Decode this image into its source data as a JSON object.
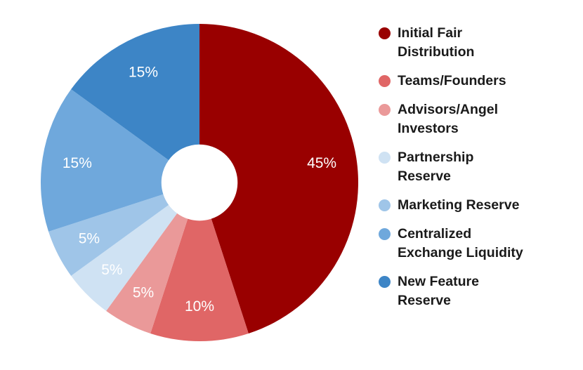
{
  "figure": {
    "background_color": "#ffffff"
  },
  "chart_data": {
    "type": "pie",
    "subtype": "donut",
    "title": "",
    "start_angle_deg": 0,
    "direction": "clockwise",
    "donut_hole_ratio": 0.24,
    "legend_position": "right",
    "value_label_color": "#ffffff",
    "slices": [
      {
        "label": "Initial Fair Distribution",
        "lines": [
          "Initial Fair",
          "Distribution"
        ],
        "value": 45,
        "display": "45%",
        "color": "#990000"
      },
      {
        "label": "Teams/Founders",
        "lines": [
          "Teams/Founders"
        ],
        "value": 10,
        "display": "10%",
        "color": "#e06666"
      },
      {
        "label": "Advisors/Angel Investors",
        "lines": [
          "Advisors/Angel",
          "Investors"
        ],
        "value": 5,
        "display": "5%",
        "color": "#ea9999"
      },
      {
        "label": "Partnership Reserve",
        "lines": [
          "Partnership",
          "Reserve"
        ],
        "value": 5,
        "display": "5%",
        "color": "#cfe2f3"
      },
      {
        "label": "Marketing Reserve",
        "lines": [
          "Marketing Reserve"
        ],
        "value": 5,
        "display": "5%",
        "color": "#9fc5e8"
      },
      {
        "label": "Centralized Exchange Liquidity",
        "lines": [
          "Centralized",
          "Exchange Liquidity"
        ],
        "value": 15,
        "display": "15%",
        "color": "#6fa8dc"
      },
      {
        "label": "New Feature Reserve",
        "lines": [
          "New Feature",
          "Reserve"
        ],
        "value": 15,
        "display": "15%",
        "color": "#3d85c6"
      }
    ]
  }
}
